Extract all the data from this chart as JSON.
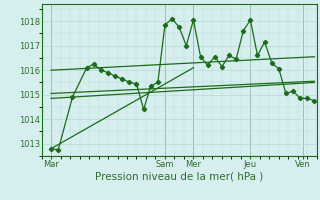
{
  "xlabel": "Pression niveau de la mer( hPa )",
  "background_color": "#d7eeee",
  "grid_color": "#b8d8d8",
  "line_color": "#1a6b1a",
  "tick_label_color": "#2d6e2d",
  "ylim": [
    1012.5,
    1018.7
  ],
  "yticks": [
    1013,
    1014,
    1015,
    1016,
    1017,
    1018
  ],
  "xlim": [
    0,
    232
  ],
  "xtick_positions": [
    8,
    104,
    128,
    176,
    220
  ],
  "xtick_labels": [
    "Mar",
    "Sam",
    "Mer",
    "Jeu",
    "Ven"
  ],
  "vlines": [
    8,
    104,
    128,
    176,
    220
  ],
  "series1": [
    [
      8,
      1012.8
    ],
    [
      14,
      1012.75
    ],
    [
      26,
      1014.9
    ],
    [
      38,
      1016.1
    ],
    [
      44,
      1016.25
    ],
    [
      50,
      1016.0
    ],
    [
      56,
      1015.9
    ],
    [
      62,
      1015.75
    ],
    [
      68,
      1015.65
    ],
    [
      74,
      1015.5
    ],
    [
      80,
      1015.45
    ],
    [
      86,
      1014.4
    ],
    [
      92,
      1015.35
    ],
    [
      98,
      1015.5
    ],
    [
      104,
      1017.85
    ],
    [
      110,
      1018.1
    ],
    [
      116,
      1017.75
    ],
    [
      122,
      1017.0
    ],
    [
      128,
      1018.05
    ],
    [
      134,
      1016.55
    ],
    [
      140,
      1016.2
    ],
    [
      146,
      1016.55
    ],
    [
      152,
      1016.15
    ],
    [
      158,
      1016.6
    ],
    [
      164,
      1016.45
    ],
    [
      170,
      1017.6
    ],
    [
      176,
      1018.05
    ],
    [
      182,
      1016.6
    ],
    [
      188,
      1017.15
    ],
    [
      194,
      1016.3
    ],
    [
      200,
      1016.05
    ],
    [
      206,
      1015.05
    ],
    [
      212,
      1015.15
    ],
    [
      218,
      1014.85
    ],
    [
      224,
      1014.85
    ],
    [
      230,
      1014.75
    ]
  ],
  "trend_lines": [
    [
      [
        8,
        1014.85
      ],
      [
        230,
        1015.5
      ]
    ],
    [
      [
        8,
        1015.05
      ],
      [
        230,
        1015.55
      ]
    ],
    [
      [
        8,
        1012.8
      ],
      [
        128,
        1016.1
      ]
    ],
    [
      [
        8,
        1016.0
      ],
      [
        230,
        1016.55
      ]
    ]
  ]
}
